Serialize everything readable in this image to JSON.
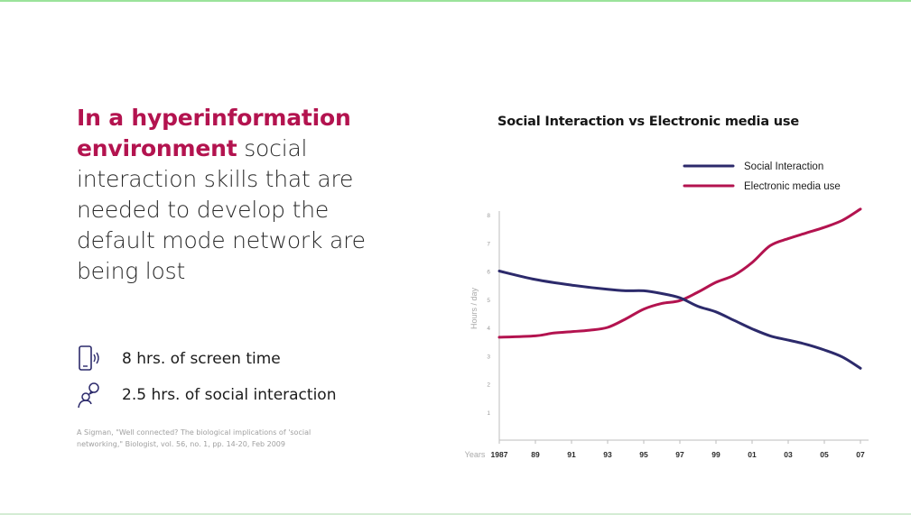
{
  "slide": {
    "headline_highlight": "In a hyperinformation environment",
    "headline_rest": " social interaction skills that are needed to develop the default mode network are being lost",
    "stats": [
      {
        "icon": "phone-icon",
        "text": "8 hrs. of screen time"
      },
      {
        "icon": "person-speech-icon",
        "text": "2.5 hrs. of social interaction"
      }
    ],
    "citation": "A Sigman, \"Well connected? The biological implications of 'social networking,\" Biologist, vol. 56, no. 1, pp. 14-20, Feb 2009"
  },
  "colors": {
    "accent": "#b3134f",
    "social": "#2c2a6b",
    "media": "#b3134f"
  },
  "chart_data": {
    "type": "line",
    "title": "Social Interaction vs Electronic media use",
    "ylabel": "Hours / day",
    "xlabel": "Years",
    "ylim": [
      0,
      8
    ],
    "yticks": [
      "1",
      "2",
      "3",
      "4",
      "5",
      "6",
      "7",
      "8"
    ],
    "xticks": [
      {
        "year": 1987,
        "label": "1987"
      },
      {
        "year": 1989,
        "label": "89"
      },
      {
        "year": 1991,
        "label": "91"
      },
      {
        "year": 1993,
        "label": "93"
      },
      {
        "year": 1995,
        "label": "95"
      },
      {
        "year": 1997,
        "label": "97"
      },
      {
        "year": 1999,
        "label": "99"
      },
      {
        "year": 2001,
        "label": "01"
      },
      {
        "year": 2003,
        "label": "03"
      },
      {
        "year": 2005,
        "label": "05"
      },
      {
        "year": 2007,
        "label": "07"
      }
    ],
    "legend_position": "top-right",
    "series": [
      {
        "name": "Social Interaction",
        "color": "#2c2a6b",
        "points": [
          [
            1987,
            6.0
          ],
          [
            1989,
            5.7
          ],
          [
            1991,
            5.5
          ],
          [
            1993,
            5.35
          ],
          [
            1994,
            5.3
          ],
          [
            1995,
            5.3
          ],
          [
            1996,
            5.2
          ],
          [
            1997,
            5.05
          ],
          [
            1998,
            4.75
          ],
          [
            1999,
            4.55
          ],
          [
            2000,
            4.25
          ],
          [
            2001,
            3.95
          ],
          [
            2002,
            3.7
          ],
          [
            2003,
            3.55
          ],
          [
            2004,
            3.4
          ],
          [
            2005,
            3.2
          ],
          [
            2006,
            2.95
          ],
          [
            2007,
            2.55
          ]
        ]
      },
      {
        "name": "Electronic media use",
        "color": "#b3134f",
        "points": [
          [
            1987,
            3.65
          ],
          [
            1989,
            3.7
          ],
          [
            1990,
            3.8
          ],
          [
            1991,
            3.85
          ],
          [
            1992,
            3.9
          ],
          [
            1993,
            4.0
          ],
          [
            1994,
            4.3
          ],
          [
            1995,
            4.65
          ],
          [
            1996,
            4.85
          ],
          [
            1997,
            4.95
          ],
          [
            1998,
            5.25
          ],
          [
            1999,
            5.6
          ],
          [
            2000,
            5.85
          ],
          [
            2001,
            6.3
          ],
          [
            2002,
            6.9
          ],
          [
            2003,
            7.15
          ],
          [
            2004,
            7.35
          ],
          [
            2005,
            7.55
          ],
          [
            2006,
            7.8
          ],
          [
            2007,
            8.2
          ]
        ]
      }
    ]
  }
}
